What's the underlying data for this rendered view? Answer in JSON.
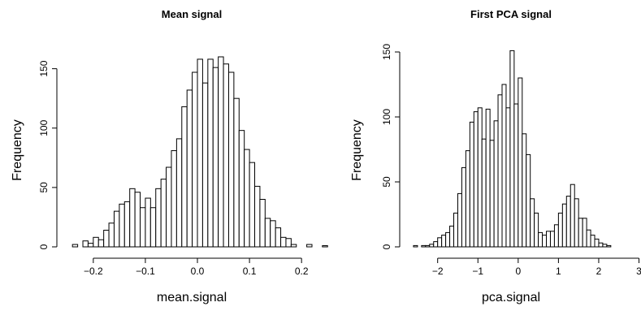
{
  "colors": {
    "background": "#ffffff",
    "bar_fill": "#ffffff",
    "bar_stroke": "#000000"
  },
  "chart_data": [
    {
      "type": "bar",
      "title": "Mean signal",
      "xlabel": "mean.signal",
      "ylabel": "Frequency",
      "grid": false,
      "xlim": [
        -0.245,
        0.22
      ],
      "ylim": [
        0,
        160
      ],
      "xticks": [
        -0.2,
        -0.1,
        0.0,
        0.1,
        0.2
      ],
      "xtick_labels": [
        "−0.2",
        "−0.1",
        "0.0",
        "0.1",
        "0.2"
      ],
      "yticks": [
        0,
        50,
        100,
        150
      ],
      "ytick_labels": [
        "0",
        "50",
        "100",
        "150"
      ],
      "bin_start": -0.24,
      "bin_width": 0.01,
      "values": [
        2,
        0,
        5,
        3,
        8,
        6,
        14,
        20,
        30,
        36,
        38,
        49,
        46,
        33,
        41,
        33,
        49,
        57,
        67,
        81,
        91,
        118,
        132,
        147,
        158,
        138,
        158,
        151,
        160,
        154,
        147,
        125,
        98,
        82,
        71,
        51,
        40,
        24,
        22,
        16,
        8,
        7,
        2,
        0,
        0,
        2,
        0,
        0,
        1
      ]
    },
    {
      "type": "bar",
      "title": "First PCA signal",
      "xlabel": "pca.signal",
      "ylabel": "Frequency",
      "grid": false,
      "xlim": [
        -2.7,
        3.05
      ],
      "ylim": [
        0,
        150
      ],
      "xticks": [
        -2,
        -1,
        0,
        1,
        2,
        3
      ],
      "xtick_labels": [
        "−2",
        "−1",
        "0",
        "1",
        "2",
        "3"
      ],
      "yticks": [
        0,
        50,
        100,
        150
      ],
      "ytick_labels": [
        "0",
        "50",
        "100",
        "150"
      ],
      "bin_start": -2.6,
      "bin_width": 0.1,
      "values": [
        1,
        0,
        1,
        1,
        2,
        4,
        7,
        9,
        11,
        16,
        26,
        41,
        61,
        74,
        96,
        104,
        107,
        83,
        106,
        82,
        97,
        117,
        125,
        107,
        151,
        110,
        130,
        87,
        71,
        37,
        26,
        11,
        9,
        12,
        12,
        17,
        26,
        33,
        39,
        48,
        37,
        22,
        22,
        13,
        9,
        6,
        3,
        2,
        1
      ]
    }
  ]
}
